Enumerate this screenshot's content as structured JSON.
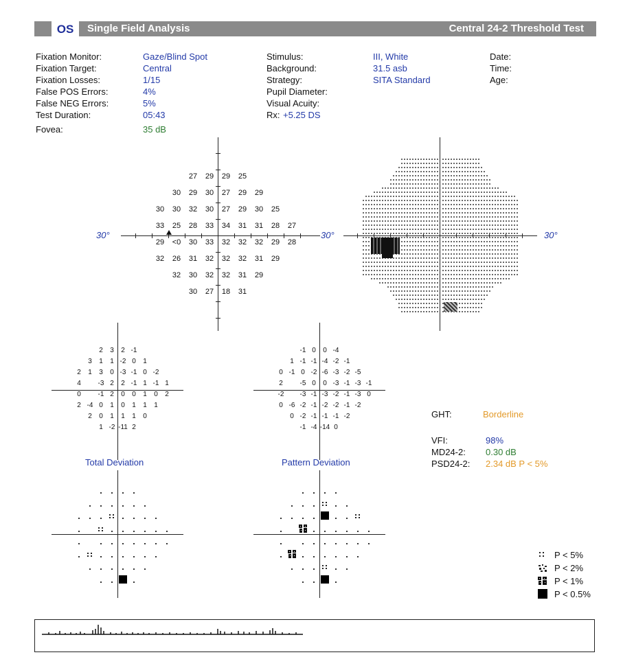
{
  "header": {
    "eye": "OS",
    "title": "Single Field Analysis",
    "test": "Central 24-2 Threshold Test"
  },
  "info_left": [
    {
      "label": "Fixation Monitor:",
      "value": "Gaze/Blind Spot"
    },
    {
      "label": "Fixation Target:",
      "value": "Central"
    },
    {
      "label": "Fixation Losses:",
      "value": "1/15"
    },
    {
      "label": "False POS Errors:",
      "value": "4%"
    },
    {
      "label": "False NEG Errors:",
      "value": "5%"
    },
    {
      "label": "Test Duration:",
      "value": "05:43"
    }
  ],
  "fovea": {
    "label": "Fovea:",
    "value": "35 dB"
  },
  "info_mid": [
    {
      "label": "Stimulus:",
      "value": "III, White"
    },
    {
      "label": "Background:",
      "value": "31.5 asb"
    },
    {
      "label": "Strategy:",
      "value": "SITA Standard"
    },
    {
      "label": "Pupil Diameter:",
      "value": ""
    },
    {
      "label": "Visual Acuity:",
      "value": ""
    }
  ],
  "rx": {
    "label": "Rx:",
    "value": "+5.25 DS"
  },
  "info_right": [
    "Date:",
    "Time:",
    "Age:"
  ],
  "degree_label": "30°",
  "threshold_grid": [
    {
      "cells": [
        "27",
        "29",
        "29",
        "25"
      ],
      "start": 3
    },
    {
      "cells": [
        "30",
        "29",
        "30",
        "27",
        "29",
        "29"
      ],
      "start": 2
    },
    {
      "cells": [
        "30",
        "30",
        "32",
        "30",
        "27",
        "29",
        "30",
        "25"
      ],
      "start": 1
    },
    {
      "cells": [
        "33",
        "25",
        "28",
        "33",
        "34",
        "31",
        "31",
        "28",
        "27"
      ],
      "start": 1
    },
    {
      "cells": [
        "29",
        "<0",
        "30",
        "33",
        "32",
        "32",
        "32",
        "29",
        "28"
      ],
      "start": 1
    },
    {
      "cells": [
        "32",
        "26",
        "31",
        "32",
        "32",
        "32",
        "31",
        "29"
      ],
      "start": 1
    },
    {
      "cells": [
        "32",
        "30",
        "32",
        "32",
        "31",
        "29"
      ],
      "start": 2
    },
    {
      "cells": [
        "30",
        "27",
        "18",
        "31"
      ],
      "start": 3
    }
  ],
  "total_deviation": [
    {
      "cells": [
        "2",
        "3",
        "2",
        "-1"
      ],
      "start": 3
    },
    {
      "cells": [
        "3",
        "1",
        "1",
        "-2",
        "0",
        "1"
      ],
      "start": 2
    },
    {
      "cells": [
        "2",
        "1",
        "3",
        "0",
        "-3",
        "-1",
        "0",
        "-2"
      ],
      "start": 1
    },
    {
      "cells": [
        "4",
        "",
        "-3",
        "2",
        "2",
        "-1",
        "1",
        "-1",
        "1"
      ],
      "start": 1
    },
    {
      "cells": [
        "0",
        "",
        "-1",
        "2",
        "0",
        "0",
        "1",
        "0",
        "2"
      ],
      "start": 1
    },
    {
      "cells": [
        "2",
        "-4",
        "0",
        "1",
        "0",
        "1",
        "1",
        "1"
      ],
      "start": 1
    },
    {
      "cells": [
        "2",
        "0",
        "1",
        "1",
        "1",
        "0"
      ],
      "start": 2
    },
    {
      "cells": [
        "1",
        "-2",
        "-11",
        "2"
      ],
      "start": 3
    }
  ],
  "pattern_deviation": [
    {
      "cells": [
        "-1",
        "0",
        "0",
        "-4"
      ],
      "start": 3
    },
    {
      "cells": [
        "1",
        "-1",
        "-1",
        "-4",
        "-2",
        "-1"
      ],
      "start": 2
    },
    {
      "cells": [
        "0",
        "-1",
        "0",
        "-2",
        "-6",
        "-3",
        "-2",
        "-5"
      ],
      "start": 1
    },
    {
      "cells": [
        "2",
        "",
        "-5",
        "0",
        "0",
        "-3",
        "-1",
        "-3",
        "-1"
      ],
      "start": 1
    },
    {
      "cells": [
        "-2",
        "",
        "-3",
        "-1",
        "-3",
        "-2",
        "-1",
        "-3",
        "0"
      ],
      "start": 1
    },
    {
      "cells": [
        "0",
        "-6",
        "-2",
        "-1",
        "-2",
        "-2",
        "-1",
        "-2"
      ],
      "start": 1
    },
    {
      "cells": [
        "0",
        "-2",
        "-1",
        "-1",
        "-1",
        "-2"
      ],
      "start": 2
    },
    {
      "cells": [
        "-1",
        "-4",
        "-14",
        "0"
      ],
      "start": 3
    }
  ],
  "total_deviation_label": "Total Deviation",
  "pattern_deviation_label": "Pattern Deviation",
  "total_prob": [
    [
      "n",
      "n",
      "n",
      "n"
    ],
    [
      "n",
      "n",
      "n",
      "n",
      "n",
      "n"
    ],
    [
      "n",
      "n",
      "n",
      "p5",
      "n",
      "n",
      "n",
      "n"
    ],
    [
      "n",
      "",
      "p5",
      "n",
      "n",
      "n",
      "n",
      "n",
      "n"
    ],
    [
      "n",
      "",
      "n",
      "n",
      "n",
      "n",
      "n",
      "n",
      "n"
    ],
    [
      "n",
      "p5",
      "n",
      "n",
      "n",
      "n",
      "n",
      "n"
    ],
    [
      "n",
      "n",
      "n",
      "n",
      "n",
      "n"
    ],
    [
      "n",
      "n",
      "p05",
      "n"
    ]
  ],
  "pattern_prob": [
    [
      "n",
      "n",
      "n",
      "n"
    ],
    [
      "n",
      "n",
      "n",
      "p5",
      "n",
      "n"
    ],
    [
      "n",
      "n",
      "n",
      "n",
      "p05",
      "n",
      "n",
      "p5"
    ],
    [
      "n",
      "",
      "p1",
      "n",
      "n",
      "n",
      "n",
      "n",
      "n"
    ],
    [
      "n",
      "",
      "n",
      "n",
      "n",
      "n",
      "n",
      "n",
      "n"
    ],
    [
      "n",
      "p1",
      "n",
      "n",
      "n",
      "n",
      "n",
      "n"
    ],
    [
      "n",
      "n",
      "n",
      "p5",
      "n",
      "n"
    ],
    [
      "n",
      "n",
      "p05",
      "n"
    ]
  ],
  "summary": {
    "ght_label": "GHT:",
    "ght_value": "Borderline",
    "vfi_label": "VFI:",
    "vfi_value": "98%",
    "md_label": "MD24-2:",
    "md_value": "0.30 dB",
    "psd_label": "PSD24-2:",
    "psd_value": "2.34 dB P < 5%"
  },
  "legend": [
    "P < 5%",
    "P < 2%",
    "P < 1%",
    "P < 0.5%"
  ],
  "colors": {
    "blue": "#233aa8",
    "green": "#2e7d32",
    "orange": "#e39a2a",
    "header": "#8a8a8a"
  }
}
